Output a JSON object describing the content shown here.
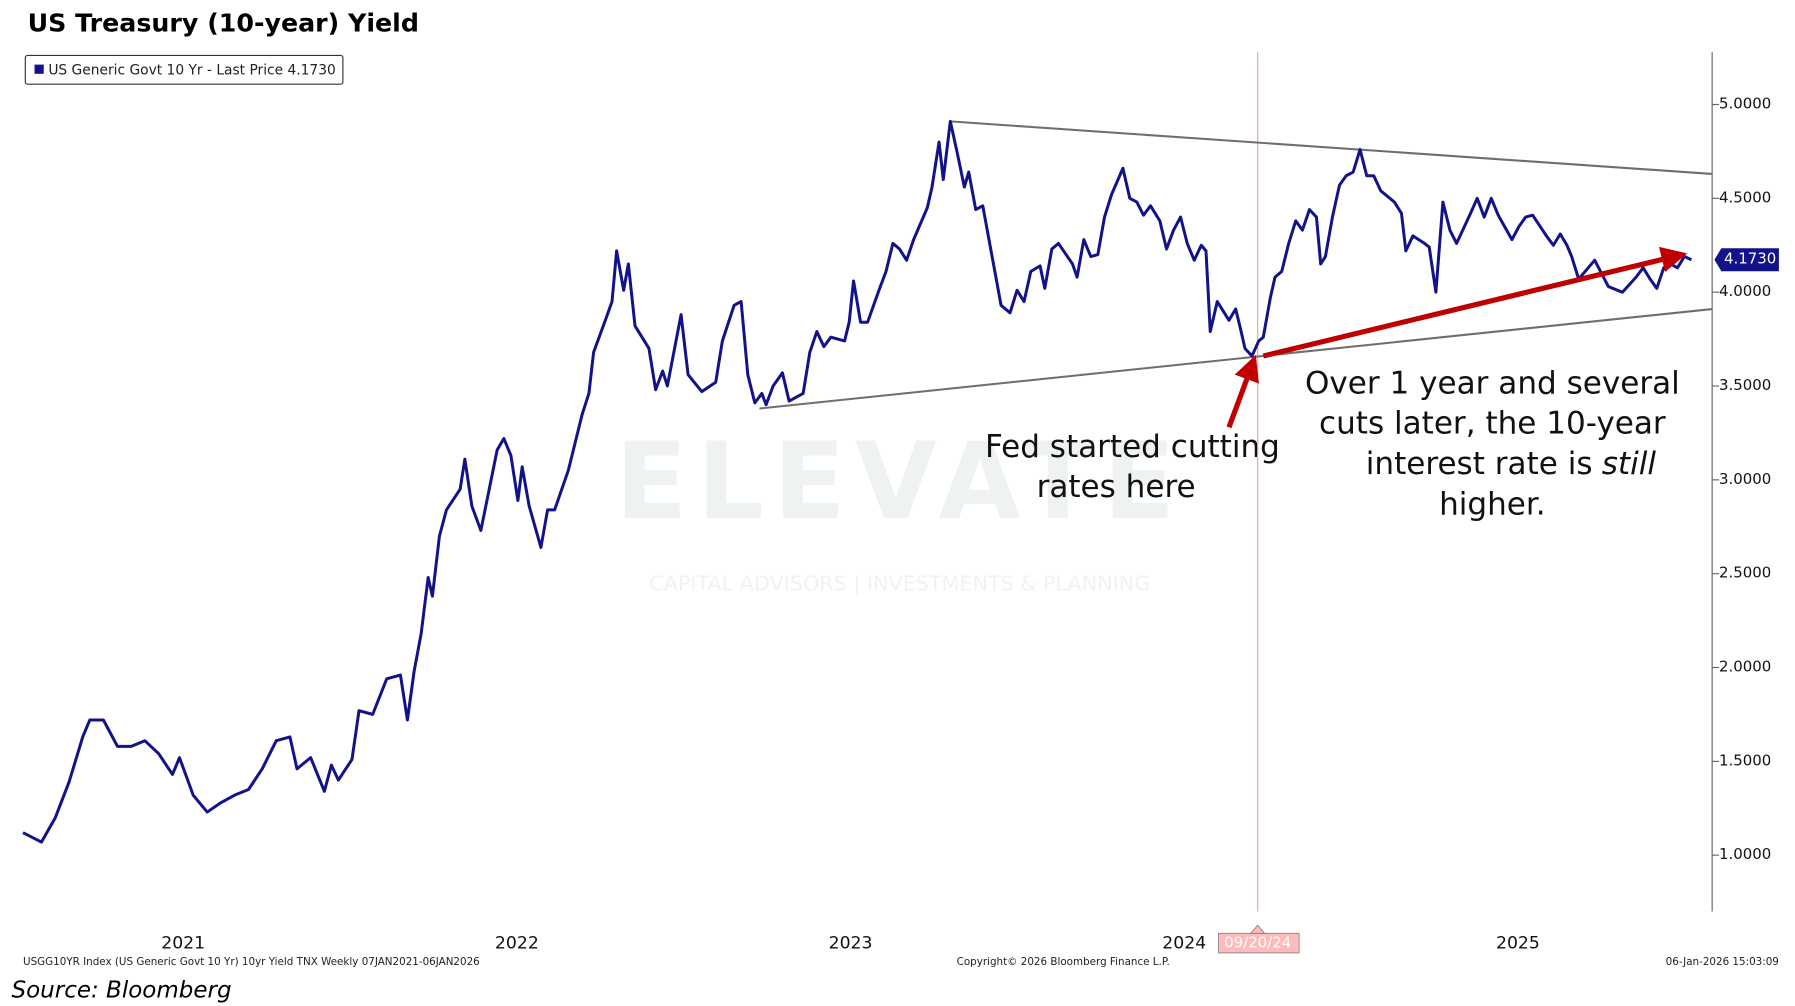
{
  "chart_data": {
    "type": "line",
    "title": "US Treasury (10-year) Yield",
    "source": "Source: Bloomberg",
    "footer_left": "USGG10YR Index (US Generic Govt 10 Yr) 10yr Yield TNX Weekly 07JAN2021-06JAN2026",
    "footer_center": "Copyright© 2026 Bloomberg Finance L.P.",
    "footer_right": "06-Jan-2026 15:03:09",
    "watermark": "ELEVATE",
    "watermark_sub": "CAPITAL ADVISORS | INVESTMENTS & PLANNING",
    "last_label": "4.1730",
    "xlim": [
      2021.02,
      2026.082
    ],
    "ylim": [
      0.7,
      5.28
    ],
    "xticks": [
      {
        "value": 2021.5,
        "label": "2021"
      },
      {
        "value": 2022.5,
        "label": "2022"
      },
      {
        "value": 2023.5,
        "label": "2023"
      },
      {
        "value": 2024.5,
        "label": "2024"
      },
      {
        "value": 2025.5,
        "label": "2025"
      }
    ],
    "yticks": [
      {
        "value": 1,
        "label": "1.0000"
      },
      {
        "value": 1.5,
        "label": "1.5000"
      },
      {
        "value": 2,
        "label": "2.0000"
      },
      {
        "value": 2.5,
        "label": "2.5000"
      },
      {
        "value": 3,
        "label": "3.0000"
      },
      {
        "value": 3.5,
        "label": "3.5000"
      },
      {
        "value": 4,
        "label": "4.0000"
      },
      {
        "value": 4.5,
        "label": "4.5000"
      },
      {
        "value": 5,
        "label": "5.0000"
      }
    ],
    "series": [
      {
        "name": "US Generic Govt 10 Yr - Last Price 4.1730",
        "color": "#12128a",
        "x": [
          2021.02,
          2021.075,
          2021.117,
          2021.158,
          2021.199,
          2021.22,
          2021.261,
          2021.303,
          2021.344,
          2021.385,
          2021.427,
          2021.468,
          2021.489,
          2021.53,
          2021.572,
          2021.613,
          2021.654,
          2021.696,
          2021.737,
          2021.779,
          2021.82,
          2021.841,
          2021.882,
          2021.923,
          2021.944,
          2021.965,
          2022.006,
          2022.027,
          2022.068,
          2022.11,
          2022.151,
          2022.172,
          2022.192,
          2022.213,
          2022.234,
          2022.247,
          2022.268,
          2022.289,
          2022.33,
          2022.344,
          2022.365,
          2022.392,
          2022.441,
          2022.461,
          2022.482,
          2022.503,
          2022.516,
          2022.537,
          2022.572,
          2022.592,
          2022.613,
          2022.654,
          2022.696,
          2022.716,
          2022.73,
          2022.765,
          2022.785,
          2022.799,
          2022.82,
          2022.834,
          2022.854,
          2022.896,
          2022.916,
          2022.937,
          2022.951,
          2022.992,
          2023.013,
          2023.054,
          2023.096,
          2023.116,
          2023.151,
          2023.172,
          2023.192,
          2023.213,
          2023.234,
          2023.247,
          2023.268,
          2023.296,
          2023.316,
          2023.358,
          2023.378,
          2023.399,
          2023.42,
          2023.441,
          2023.482,
          2023.496,
          2023.509,
          2023.53,
          2023.551,
          2023.585,
          2023.606,
          2023.627,
          2023.647,
          2023.668,
          2023.689,
          2023.73,
          2023.744,
          2023.765,
          2023.778,
          2023.799,
          2023.82,
          2023.841,
          2023.854,
          2023.875,
          2023.896,
          2023.923,
          2023.951,
          2023.978,
          2023.999,
          2024.02,
          2024.04,
          2024.068,
          2024.082,
          2024.103,
          2024.123,
          2024.165,
          2024.179,
          2024.199,
          2024.22,
          2024.241,
          2024.261,
          2024.282,
          2024.316,
          2024.337,
          2024.358,
          2024.378,
          2024.399,
          2024.427,
          2024.447,
          2024.468,
          2024.489,
          2024.509,
          2024.53,
          2024.551,
          2024.565,
          2024.578,
          2024.599,
          2024.634,
          2024.654,
          2024.668,
          2024.682,
          2024.703,
          2024.723,
          2024.737,
          2024.758,
          2024.772,
          2024.792,
          2024.813,
          2024.834,
          2024.854,
          2024.875,
          2024.896,
          2024.909,
          2024.923,
          2024.944,
          2024.965,
          2024.985,
          2025.006,
          2025.027,
          2025.047,
          2025.068,
          2025.089,
          2025.13,
          2025.151,
          2025.164,
          2025.185,
          2025.22,
          2025.234,
          2025.254,
          2025.275,
          2025.296,
          2025.316,
          2025.358,
          2025.378,
          2025.399,
          2025.42,
          2025.441,
          2025.482,
          2025.503,
          2025.523,
          2025.544,
          2025.585,
          2025.606,
          2025.627,
          2025.647,
          2025.661,
          2025.682,
          2025.73,
          2025.771,
          2025.813,
          2025.854,
          2025.875,
          2025.896,
          2025.916,
          2025.937,
          2025.958,
          2025.978,
          2025.999,
          2026.02
        ],
        "values": [
          1.12,
          1.07,
          1.2,
          1.39,
          1.63,
          1.72,
          1.72,
          1.58,
          1.58,
          1.61,
          1.54,
          1.43,
          1.52,
          1.32,
          1.23,
          1.28,
          1.32,
          1.35,
          1.46,
          1.61,
          1.63,
          1.46,
          1.52,
          1.34,
          1.48,
          1.4,
          1.51,
          1.77,
          1.75,
          1.94,
          1.96,
          1.72,
          1.98,
          2.18,
          2.48,
          2.38,
          2.7,
          2.84,
          2.95,
          3.11,
          2.86,
          2.73,
          3.16,
          3.22,
          3.13,
          2.89,
          3.07,
          2.86,
          2.64,
          2.84,
          2.84,
          3.05,
          3.35,
          3.46,
          3.68,
          3.85,
          3.95,
          4.22,
          4.01,
          4.15,
          3.82,
          3.7,
          3.48,
          3.58,
          3.5,
          3.88,
          3.56,
          3.47,
          3.52,
          3.74,
          3.93,
          3.95,
          3.56,
          3.41,
          3.46,
          3.4,
          3.5,
          3.57,
          3.42,
          3.46,
          3.68,
          3.79,
          3.71,
          3.76,
          3.74,
          3.84,
          4.06,
          3.84,
          3.84,
          4.01,
          4.11,
          4.26,
          4.23,
          4.17,
          4.28,
          4.45,
          4.56,
          4.8,
          4.6,
          4.91,
          4.74,
          4.56,
          4.64,
          4.44,
          4.46,
          4.2,
          3.93,
          3.89,
          4.01,
          3.95,
          4.11,
          4.14,
          4.02,
          4.23,
          4.26,
          4.15,
          4.08,
          4.28,
          4.19,
          4.2,
          4.4,
          4.52,
          4.66,
          4.5,
          4.48,
          4.41,
          4.46,
          4.38,
          4.23,
          4.33,
          4.4,
          4.26,
          4.17,
          4.25,
          4.22,
          3.79,
          3.95,
          3.85,
          3.91,
          3.81,
          3.7,
          3.66,
          3.74,
          3.76,
          3.97,
          4.08,
          4.11,
          4.26,
          4.38,
          4.33,
          4.44,
          4.4,
          4.15,
          4.19,
          4.4,
          4.57,
          4.62,
          4.64,
          4.76,
          4.62,
          4.62,
          4.54,
          4.48,
          4.42,
          4.22,
          4.3,
          4.26,
          4.24,
          4.0,
          4.48,
          4.33,
          4.26,
          4.42,
          4.5,
          4.4,
          4.5,
          4.41,
          4.28,
          4.35,
          4.4,
          4.41,
          4.3,
          4.25,
          4.31,
          4.25,
          4.19,
          4.07,
          4.17,
          4.03,
          4.0,
          4.08,
          4.13,
          4.07,
          4.02,
          4.13,
          4.15,
          4.13,
          4.19,
          4.173
        ]
      }
    ],
    "trendlines": [
      {
        "color": "#6e6e6e",
        "x": [
          2023.799,
          2026.082
        ],
        "values": [
          4.91,
          4.63
        ]
      },
      {
        "color": "#6e6e6e",
        "x": [
          2023.227,
          2026.082
        ],
        "values": [
          3.38,
          3.91
        ]
      }
    ],
    "arrows": [
      {
        "color": "#c00000",
        "x": [
          2024.737,
          2025.992
        ],
        "values": [
          3.66,
          4.2
        ]
      },
      {
        "color": "#c00000",
        "x": [
          2024.634,
          2024.709
        ],
        "values": [
          3.28,
          3.64
        ]
      }
    ],
    "marker_line": {
      "x": 2024.72,
      "color": "#f4a0a0",
      "label": "09/20/24"
    },
    "annotations": [
      {
        "lines": [
          "Fed started cutting",
          "rates here"
        ]
      },
      {
        "lines": [
          "Over 1 year and several",
          "cuts later, the 10-year",
          "interest rate is",
          "still",
          "higher."
        ]
      }
    ]
  }
}
